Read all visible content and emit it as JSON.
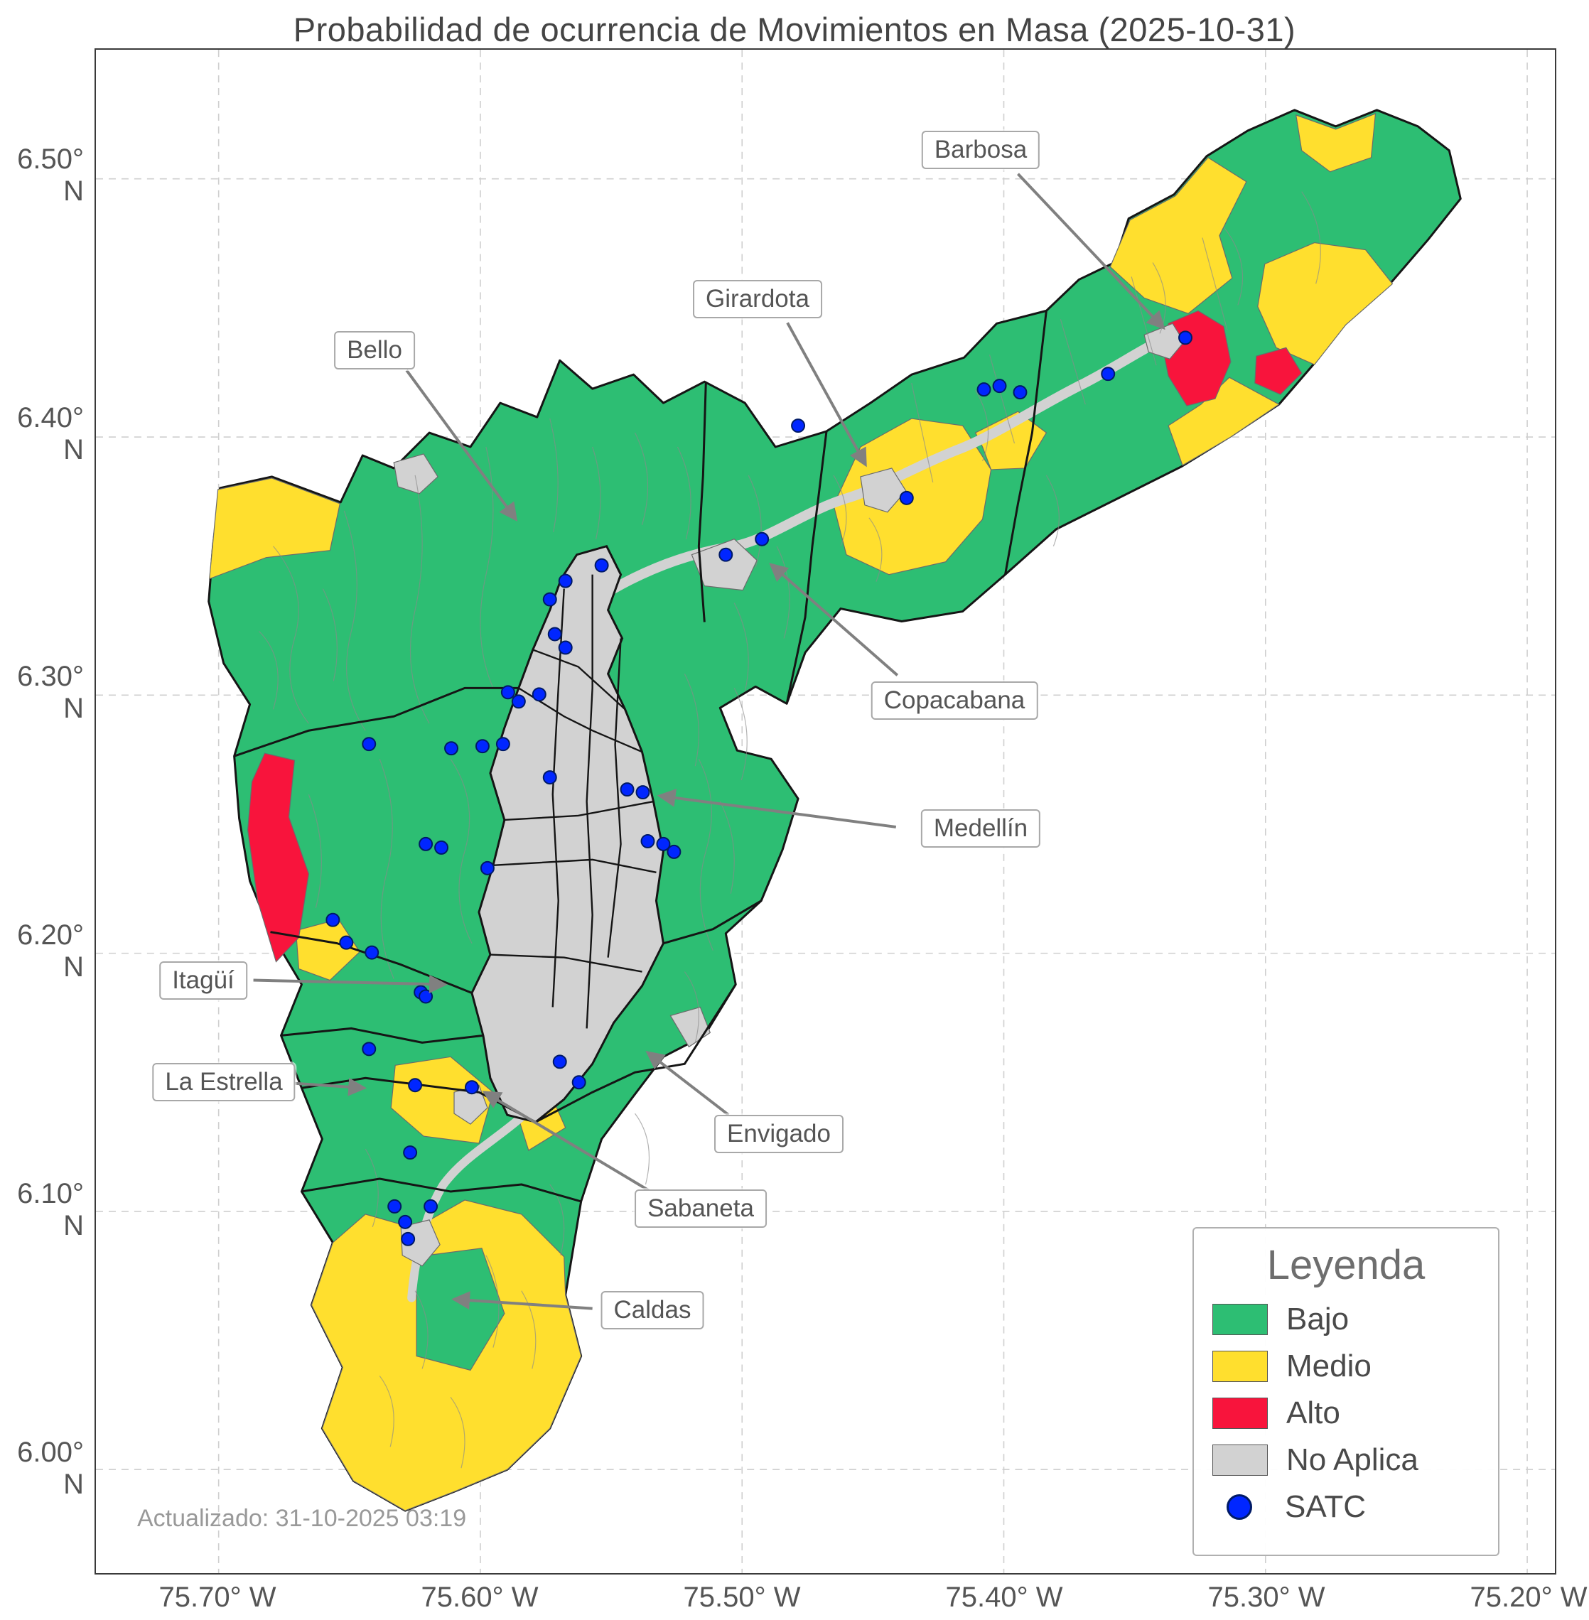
{
  "title": "Probabilidad de ocurrencia de Movimientos en Masa (2025-10-31)",
  "updated": "Actualizado: 31-10-2025 03:19",
  "axes": {
    "lat_ticks": [
      {
        "label": "6.50° N"
      },
      {
        "label": "6.40° N"
      },
      {
        "label": "6.30° N"
      },
      {
        "label": "6.20° N"
      },
      {
        "label": "6.10° N"
      },
      {
        "label": "6.00° N"
      }
    ],
    "lon_ticks": [
      {
        "label": "75.70° W"
      },
      {
        "label": "75.60° W"
      },
      {
        "label": "75.50° W"
      },
      {
        "label": "75.40° W"
      },
      {
        "label": "75.30° W"
      },
      {
        "label": "75.20° W"
      }
    ]
  },
  "legend": {
    "title": "Leyenda",
    "items": [
      {
        "label": "Bajo",
        "key": "bajo"
      },
      {
        "label": "Medio",
        "key": "medio"
      },
      {
        "label": "Alto",
        "key": "alto"
      },
      {
        "label": "No Aplica",
        "key": "noaplica"
      },
      {
        "label": "SATC",
        "key": "satc"
      }
    ]
  },
  "callouts": [
    {
      "label": "Barbosa"
    },
    {
      "label": "Girardota"
    },
    {
      "label": "Bello"
    },
    {
      "label": "Copacabana"
    },
    {
      "label": "Medellín"
    },
    {
      "label": "Itagüí"
    },
    {
      "label": "La Estrella"
    },
    {
      "label": "Envigado"
    },
    {
      "label": "Sabaneta"
    },
    {
      "label": "Caldas"
    }
  ],
  "colors": {
    "bajo": "#2dbe73",
    "medio": "#ffdf2e",
    "alto": "#f8143c",
    "noaplica": "#d2d2d2",
    "satc": "#0026ff",
    "satc-edge": "#001a66",
    "grid": "#cfcfcf",
    "boundary": "#151515",
    "thin-line": "#8a8a8a",
    "arrow": "#808080"
  }
}
